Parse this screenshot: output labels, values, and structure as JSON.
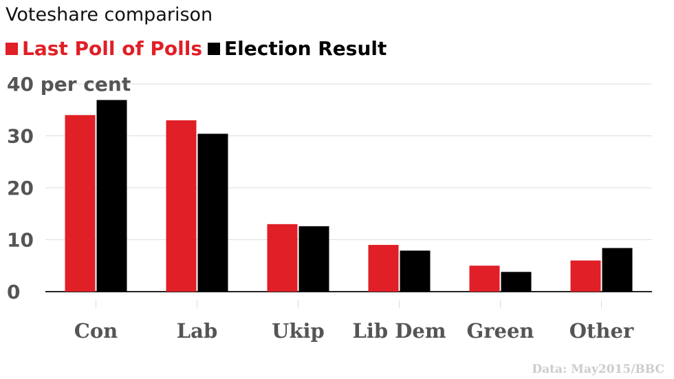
{
  "title": "Voteshare comparison",
  "source": "Data: May2015/BBC",
  "chart_data": {
    "type": "bar",
    "categories": [
      "Con",
      "Lab",
      "Ukip",
      "Lib Dem",
      "Green",
      "Other"
    ],
    "series": [
      {
        "name": "Last Poll of Polls",
        "color": "#e01f26",
        "values": [
          34,
          33,
          13,
          9,
          5,
          6
        ]
      },
      {
        "name": "Election Result",
        "color": "#000000",
        "values": [
          36.9,
          30.4,
          12.6,
          7.9,
          3.8,
          8.4
        ]
      }
    ],
    "yticks": [
      "0",
      "10",
      "20",
      "30",
      "40 per cent"
    ],
    "ylim": [
      0,
      40
    ],
    "grid": true,
    "legend": "top-left"
  }
}
